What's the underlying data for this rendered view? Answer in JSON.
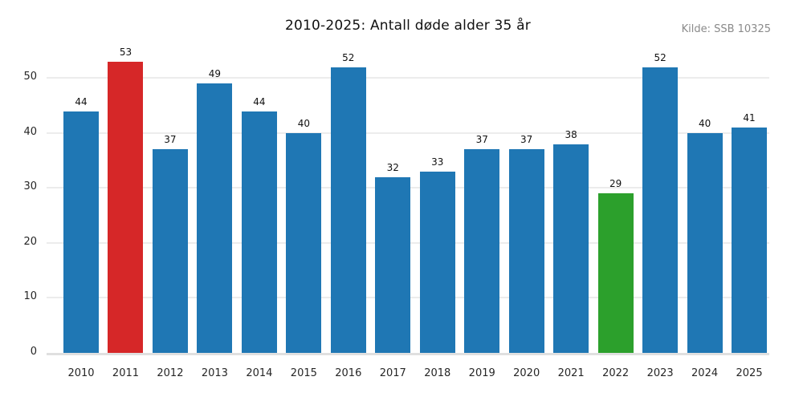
{
  "chart_data": {
    "type": "bar",
    "title": "2010-2025: Antall døde alder 35 år",
    "source": "Kilde: SSB 10325",
    "categories": [
      "2010",
      "2011",
      "2012",
      "2013",
      "2014",
      "2015",
      "2016",
      "2017",
      "2018",
      "2019",
      "2020",
      "2021",
      "2022",
      "2023",
      "2024",
      "2025"
    ],
    "values": [
      44,
      53,
      37,
      49,
      44,
      40,
      52,
      32,
      33,
      37,
      37,
      38,
      29,
      52,
      40,
      41
    ],
    "bar_colors": [
      "#1f77b4",
      "#d62728",
      "#1f77b4",
      "#1f77b4",
      "#1f77b4",
      "#1f77b4",
      "#1f77b4",
      "#1f77b4",
      "#1f77b4",
      "#1f77b4",
      "#1f77b4",
      "#1f77b4",
      "#2ca02c",
      "#1f77b4",
      "#1f77b4",
      "#1f77b4"
    ],
    "xlabel": "",
    "ylabel": "",
    "ylim": [
      0,
      54
    ],
    "yticks": [
      0,
      10,
      20,
      30,
      40,
      50
    ],
    "grid": true,
    "legend_position": "none",
    "colors": {
      "default_bar": "#1f77b4",
      "highlight_red": "#d62728",
      "highlight_green": "#2ca02c",
      "gridline": "#ececec",
      "baseline": "#e0e0e0",
      "title_text": "#111111",
      "tick_text": "#262626",
      "source_text": "#8a8a8a",
      "background": "#ffffff"
    }
  }
}
